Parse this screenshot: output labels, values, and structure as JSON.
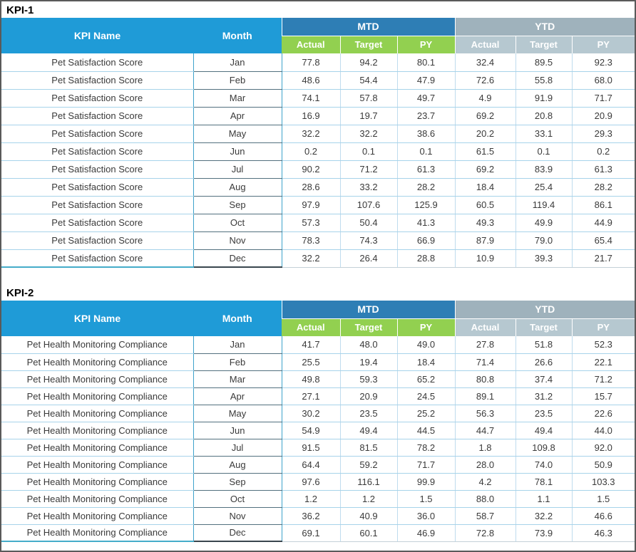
{
  "colors": {
    "frame_border": "#5a5a5a",
    "header_blue": "#1f9bd7",
    "mtd_band_blue": "#2e7eb5",
    "ytd_band_gray": "#9fb2bc",
    "mtd_sub_green": "#92d050",
    "ytd_sub_gray": "#b6c8d0",
    "grid_light_blue": "#a7d3ea",
    "kpi_column_teal": "#3ea3cb",
    "month_border_dark": "#52707e",
    "data_text": "#3a3a3a"
  },
  "tables": [
    {
      "title": "KPI-1",
      "kpi_name": "Pet Satisfaction Score",
      "headers": {
        "kpi_name": "KPI Name",
        "month": "Month",
        "mtd": "MTD",
        "ytd": "YTD",
        "sub_columns": [
          "Actual",
          "Target",
          "PY"
        ]
      },
      "rows": [
        {
          "month": "Jan",
          "values": [
            "77.8",
            "94.2",
            "80.1",
            "32.4",
            "89.5",
            "92.3"
          ]
        },
        {
          "month": "Feb",
          "values": [
            "48.6",
            "54.4",
            "47.9",
            "72.6",
            "55.8",
            "68.0"
          ]
        },
        {
          "month": "Mar",
          "values": [
            "74.1",
            "57.8",
            "49.7",
            "4.9",
            "91.9",
            "71.7"
          ]
        },
        {
          "month": "Apr",
          "values": [
            "16.9",
            "19.7",
            "23.7",
            "69.2",
            "20.8",
            "20.9"
          ]
        },
        {
          "month": "May",
          "values": [
            "32.2",
            "32.2",
            "38.6",
            "20.2",
            "33.1",
            "29.3"
          ]
        },
        {
          "month": "Jun",
          "values": [
            "0.2",
            "0.1",
            "0.1",
            "61.5",
            "0.1",
            "0.2"
          ]
        },
        {
          "month": "Jul",
          "values": [
            "90.2",
            "71.2",
            "61.3",
            "69.2",
            "83.9",
            "61.3"
          ]
        },
        {
          "month": "Aug",
          "values": [
            "28.6",
            "33.2",
            "28.2",
            "18.4",
            "25.4",
            "28.2"
          ]
        },
        {
          "month": "Sep",
          "values": [
            "97.9",
            "107.6",
            "125.9",
            "60.5",
            "119.4",
            "86.1"
          ]
        },
        {
          "month": "Oct",
          "values": [
            "57.3",
            "50.4",
            "41.3",
            "49.3",
            "49.9",
            "44.9"
          ]
        },
        {
          "month": "Nov",
          "values": [
            "78.3",
            "74.3",
            "66.9",
            "87.9",
            "79.0",
            "65.4"
          ]
        },
        {
          "month": "Dec",
          "values": [
            "32.2",
            "26.4",
            "28.8",
            "10.9",
            "39.3",
            "21.7"
          ]
        }
      ]
    },
    {
      "title": "KPI-2",
      "kpi_name": "Pet Health Monitoring Compliance",
      "headers": {
        "kpi_name": "KPI Name",
        "month": "Month",
        "mtd": "MTD",
        "ytd": "YTD",
        "sub_columns": [
          "Actual",
          "Target",
          "PY"
        ]
      },
      "rows": [
        {
          "month": "Jan",
          "values": [
            "41.7",
            "48.0",
            "49.0",
            "27.8",
            "51.8",
            "52.3"
          ]
        },
        {
          "month": "Feb",
          "values": [
            "25.5",
            "19.4",
            "18.4",
            "71.4",
            "26.6",
            "22.1"
          ]
        },
        {
          "month": "Mar",
          "values": [
            "49.8",
            "59.3",
            "65.2",
            "80.8",
            "37.4",
            "71.2"
          ]
        },
        {
          "month": "Apr",
          "values": [
            "27.1",
            "20.9",
            "24.5",
            "89.1",
            "31.2",
            "15.7"
          ]
        },
        {
          "month": "May",
          "values": [
            "30.2",
            "23.5",
            "25.2",
            "56.3",
            "23.5",
            "22.6"
          ]
        },
        {
          "month": "Jun",
          "values": [
            "54.9",
            "49.4",
            "44.5",
            "44.7",
            "49.4",
            "44.0"
          ]
        },
        {
          "month": "Jul",
          "values": [
            "91.5",
            "81.5",
            "78.2",
            "1.8",
            "109.8",
            "92.0"
          ]
        },
        {
          "month": "Aug",
          "values": [
            "64.4",
            "59.2",
            "71.7",
            "28.0",
            "74.0",
            "50.9"
          ]
        },
        {
          "month": "Sep",
          "values": [
            "97.6",
            "116.1",
            "99.9",
            "4.2",
            "78.1",
            "103.3"
          ]
        },
        {
          "month": "Oct",
          "values": [
            "1.2",
            "1.2",
            "1.5",
            "88.0",
            "1.1",
            "1.5"
          ]
        },
        {
          "month": "Nov",
          "values": [
            "36.2",
            "40.9",
            "36.0",
            "58.7",
            "32.2",
            "46.6"
          ]
        },
        {
          "month": "Dec",
          "values": [
            "69.1",
            "60.1",
            "46.9",
            "72.8",
            "73.9",
            "46.3"
          ]
        }
      ]
    }
  ]
}
